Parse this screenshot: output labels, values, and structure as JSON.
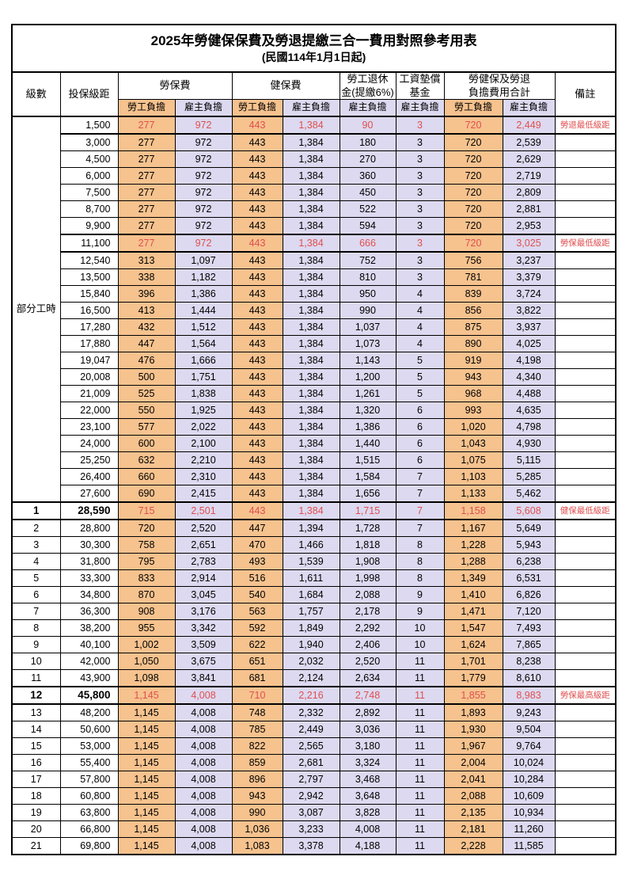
{
  "colors": {
    "orange": "#f6c28e",
    "lavender": "#dcd9f0",
    "red": "#e04f4f"
  },
  "title": "2025年勞健保保費及勞退提繳三合一費用對照參考用表",
  "subtitle": "(民國114年1月1日起)",
  "header": {
    "level": "級數",
    "bracket": "投保級距",
    "labor_ins": "勞保費",
    "health_ins": "健保費",
    "pension_line1": "勞工退休",
    "pension_line2": "金(提繳6%)",
    "wage_fund_line1": "工資墊償",
    "wage_fund_line2": "基金",
    "total_line1": "勞健保及勞退",
    "total_line2": "負擔費用合計",
    "note": "備註",
    "employee": "勞工負擔",
    "employer": "雇主負擔"
  },
  "table": {
    "group_label": "部分工時",
    "group_rows": 23,
    "rows": [
      {
        "level": "",
        "bracket": "1,500",
        "vals": [
          "277",
          "972",
          "443",
          "1,384",
          "90",
          "3",
          "720",
          "2,449"
        ],
        "note": "勞退最低級距",
        "hl": true,
        "emph": false
      },
      {
        "level": "",
        "bracket": "3,000",
        "vals": [
          "277",
          "972",
          "443",
          "1,384",
          "180",
          "3",
          "720",
          "2,539"
        ],
        "note": "",
        "hl": false,
        "emph": false
      },
      {
        "level": "",
        "bracket": "4,500",
        "vals": [
          "277",
          "972",
          "443",
          "1,384",
          "270",
          "3",
          "720",
          "2,629"
        ],
        "note": "",
        "hl": false,
        "emph": false
      },
      {
        "level": "",
        "bracket": "6,000",
        "vals": [
          "277",
          "972",
          "443",
          "1,384",
          "360",
          "3",
          "720",
          "2,719"
        ],
        "note": "",
        "hl": false,
        "emph": false
      },
      {
        "level": "",
        "bracket": "7,500",
        "vals": [
          "277",
          "972",
          "443",
          "1,384",
          "450",
          "3",
          "720",
          "2,809"
        ],
        "note": "",
        "hl": false,
        "emph": false
      },
      {
        "level": "",
        "bracket": "8,700",
        "vals": [
          "277",
          "972",
          "443",
          "1,384",
          "522",
          "3",
          "720",
          "2,881"
        ],
        "note": "",
        "hl": false,
        "emph": false
      },
      {
        "level": "",
        "bracket": "9,900",
        "vals": [
          "277",
          "972",
          "443",
          "1,384",
          "594",
          "3",
          "720",
          "2,953"
        ],
        "note": "",
        "hl": false,
        "emph": false
      },
      {
        "level": "",
        "bracket": "11,100",
        "vals": [
          "277",
          "972",
          "443",
          "1,384",
          "666",
          "3",
          "720",
          "3,025"
        ],
        "note": "勞保最低級距",
        "hl": true,
        "emph": false
      },
      {
        "level": "",
        "bracket": "12,540",
        "vals": [
          "313",
          "1,097",
          "443",
          "1,384",
          "752",
          "3",
          "756",
          "3,237"
        ],
        "note": "",
        "hl": false,
        "emph": false
      },
      {
        "level": "",
        "bracket": "13,500",
        "vals": [
          "338",
          "1,182",
          "443",
          "1,384",
          "810",
          "3",
          "781",
          "3,379"
        ],
        "note": "",
        "hl": false,
        "emph": false
      },
      {
        "level": "",
        "bracket": "15,840",
        "vals": [
          "396",
          "1,386",
          "443",
          "1,384",
          "950",
          "4",
          "839",
          "3,724"
        ],
        "note": "",
        "hl": false,
        "emph": false
      },
      {
        "level": "",
        "bracket": "16,500",
        "vals": [
          "413",
          "1,444",
          "443",
          "1,384",
          "990",
          "4",
          "856",
          "3,822"
        ],
        "note": "",
        "hl": false,
        "emph": false
      },
      {
        "level": "",
        "bracket": "17,280",
        "vals": [
          "432",
          "1,512",
          "443",
          "1,384",
          "1,037",
          "4",
          "875",
          "3,937"
        ],
        "note": "",
        "hl": false,
        "emph": false
      },
      {
        "level": "",
        "bracket": "17,880",
        "vals": [
          "447",
          "1,564",
          "443",
          "1,384",
          "1,073",
          "4",
          "890",
          "4,025"
        ],
        "note": "",
        "hl": false,
        "emph": false
      },
      {
        "level": "",
        "bracket": "19,047",
        "vals": [
          "476",
          "1,666",
          "443",
          "1,384",
          "1,143",
          "5",
          "919",
          "4,198"
        ],
        "note": "",
        "hl": false,
        "emph": false
      },
      {
        "level": "",
        "bracket": "20,008",
        "vals": [
          "500",
          "1,751",
          "443",
          "1,384",
          "1,200",
          "5",
          "943",
          "4,340"
        ],
        "note": "",
        "hl": false,
        "emph": false
      },
      {
        "level": "",
        "bracket": "21,009",
        "vals": [
          "525",
          "1,838",
          "443",
          "1,384",
          "1,261",
          "5",
          "968",
          "4,488"
        ],
        "note": "",
        "hl": false,
        "emph": false
      },
      {
        "level": "",
        "bracket": "22,000",
        "vals": [
          "550",
          "1,925",
          "443",
          "1,384",
          "1,320",
          "6",
          "993",
          "4,635"
        ],
        "note": "",
        "hl": false,
        "emph": false
      },
      {
        "level": "",
        "bracket": "23,100",
        "vals": [
          "577",
          "2,022",
          "443",
          "1,384",
          "1,386",
          "6",
          "1,020",
          "4,798"
        ],
        "note": "",
        "hl": false,
        "emph": false
      },
      {
        "level": "",
        "bracket": "24,000",
        "vals": [
          "600",
          "2,100",
          "443",
          "1,384",
          "1,440",
          "6",
          "1,043",
          "4,930"
        ],
        "note": "",
        "hl": false,
        "emph": false
      },
      {
        "level": "",
        "bracket": "25,250",
        "vals": [
          "632",
          "2,210",
          "443",
          "1,384",
          "1,515",
          "6",
          "1,075",
          "5,115"
        ],
        "note": "",
        "hl": false,
        "emph": false
      },
      {
        "level": "",
        "bracket": "26,400",
        "vals": [
          "660",
          "2,310",
          "443",
          "1,384",
          "1,584",
          "7",
          "1,103",
          "5,285"
        ],
        "note": "",
        "hl": false,
        "emph": false
      },
      {
        "level": "",
        "bracket": "27,600",
        "vals": [
          "690",
          "2,415",
          "443",
          "1,384",
          "1,656",
          "7",
          "1,133",
          "5,462"
        ],
        "note": "",
        "hl": false,
        "emph": false
      },
      {
        "level": "1",
        "bracket": "28,590",
        "vals": [
          "715",
          "2,501",
          "443",
          "1,384",
          "1,715",
          "7",
          "1,158",
          "5,608"
        ],
        "note": "健保最低級距",
        "hl": true,
        "emph": true
      },
      {
        "level": "2",
        "bracket": "28,800",
        "vals": [
          "720",
          "2,520",
          "447",
          "1,394",
          "1,728",
          "7",
          "1,167",
          "5,649"
        ],
        "note": "",
        "hl": false,
        "emph": false
      },
      {
        "level": "3",
        "bracket": "30,300",
        "vals": [
          "758",
          "2,651",
          "470",
          "1,466",
          "1,818",
          "8",
          "1,228",
          "5,943"
        ],
        "note": "",
        "hl": false,
        "emph": false
      },
      {
        "level": "4",
        "bracket": "31,800",
        "vals": [
          "795",
          "2,783",
          "493",
          "1,539",
          "1,908",
          "8",
          "1,288",
          "6,238"
        ],
        "note": "",
        "hl": false,
        "emph": false
      },
      {
        "level": "5",
        "bracket": "33,300",
        "vals": [
          "833",
          "2,914",
          "516",
          "1,611",
          "1,998",
          "8",
          "1,349",
          "6,531"
        ],
        "note": "",
        "hl": false,
        "emph": false
      },
      {
        "level": "6",
        "bracket": "34,800",
        "vals": [
          "870",
          "3,045",
          "540",
          "1,684",
          "2,088",
          "9",
          "1,410",
          "6,826"
        ],
        "note": "",
        "hl": false,
        "emph": false
      },
      {
        "level": "7",
        "bracket": "36,300",
        "vals": [
          "908",
          "3,176",
          "563",
          "1,757",
          "2,178",
          "9",
          "1,471",
          "7,120"
        ],
        "note": "",
        "hl": false,
        "emph": false
      },
      {
        "level": "8",
        "bracket": "38,200",
        "vals": [
          "955",
          "3,342",
          "592",
          "1,849",
          "2,292",
          "10",
          "1,547",
          "7,493"
        ],
        "note": "",
        "hl": false,
        "emph": false
      },
      {
        "level": "9",
        "bracket": "40,100",
        "vals": [
          "1,002",
          "3,509",
          "622",
          "1,940",
          "2,406",
          "10",
          "1,624",
          "7,865"
        ],
        "note": "",
        "hl": false,
        "emph": false
      },
      {
        "level": "10",
        "bracket": "42,000",
        "vals": [
          "1,050",
          "3,675",
          "651",
          "2,032",
          "2,520",
          "11",
          "1,701",
          "8,238"
        ],
        "note": "",
        "hl": false,
        "emph": false
      },
      {
        "level": "11",
        "bracket": "43,900",
        "vals": [
          "1,098",
          "3,841",
          "681",
          "2,124",
          "2,634",
          "11",
          "1,779",
          "8,610"
        ],
        "note": "",
        "hl": false,
        "emph": false
      },
      {
        "level": "12",
        "bracket": "45,800",
        "vals": [
          "1,145",
          "4,008",
          "710",
          "2,216",
          "2,748",
          "11",
          "1,855",
          "8,983"
        ],
        "note": "勞保最高級距",
        "hl": true,
        "emph": true
      },
      {
        "level": "13",
        "bracket": "48,200",
        "vals": [
          "1,145",
          "4,008",
          "748",
          "2,332",
          "2,892",
          "11",
          "1,893",
          "9,243"
        ],
        "note": "",
        "hl": false,
        "emph": false
      },
      {
        "level": "14",
        "bracket": "50,600",
        "vals": [
          "1,145",
          "4,008",
          "785",
          "2,449",
          "3,036",
          "11",
          "1,930",
          "9,504"
        ],
        "note": "",
        "hl": false,
        "emph": false
      },
      {
        "level": "15",
        "bracket": "53,000",
        "vals": [
          "1,145",
          "4,008",
          "822",
          "2,565",
          "3,180",
          "11",
          "1,967",
          "9,764"
        ],
        "note": "",
        "hl": false,
        "emph": false
      },
      {
        "level": "16",
        "bracket": "55,400",
        "vals": [
          "1,145",
          "4,008",
          "859",
          "2,681",
          "3,324",
          "11",
          "2,004",
          "10,024"
        ],
        "note": "",
        "hl": false,
        "emph": false
      },
      {
        "level": "17",
        "bracket": "57,800",
        "vals": [
          "1,145",
          "4,008",
          "896",
          "2,797",
          "3,468",
          "11",
          "2,041",
          "10,284"
        ],
        "note": "",
        "hl": false,
        "emph": false
      },
      {
        "level": "18",
        "bracket": "60,800",
        "vals": [
          "1,145",
          "4,008",
          "943",
          "2,942",
          "3,648",
          "11",
          "2,088",
          "10,609"
        ],
        "note": "",
        "hl": false,
        "emph": false
      },
      {
        "level": "19",
        "bracket": "63,800",
        "vals": [
          "1,145",
          "4,008",
          "990",
          "3,087",
          "3,828",
          "11",
          "2,135",
          "10,934"
        ],
        "note": "",
        "hl": false,
        "emph": false
      },
      {
        "level": "20",
        "bracket": "66,800",
        "vals": [
          "1,145",
          "4,008",
          "1,036",
          "3,233",
          "4,008",
          "11",
          "2,181",
          "11,260"
        ],
        "note": "",
        "hl": false,
        "emph": false
      },
      {
        "level": "21",
        "bracket": "69,800",
        "vals": [
          "1,145",
          "4,008",
          "1,083",
          "3,378",
          "4,188",
          "11",
          "2,228",
          "11,585"
        ],
        "note": "",
        "hl": false,
        "emph": false
      }
    ]
  }
}
